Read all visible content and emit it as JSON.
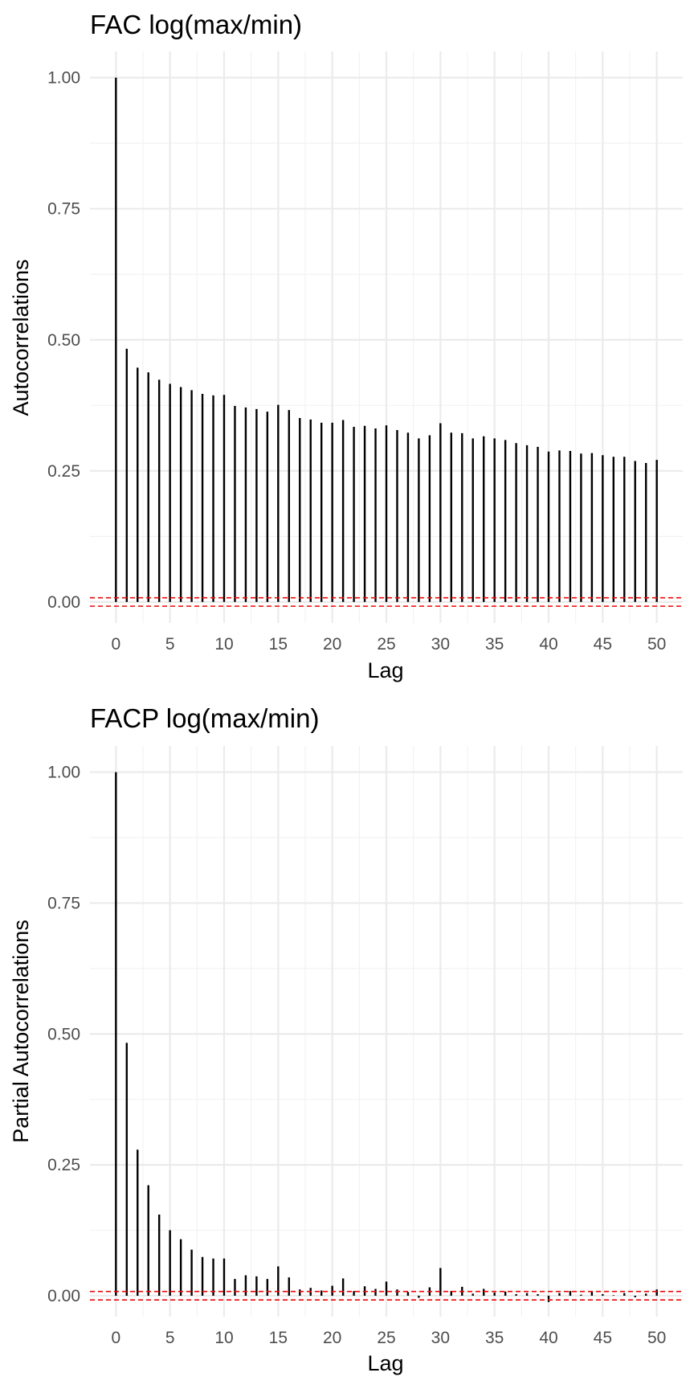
{
  "chart_data": [
    {
      "type": "bar",
      "title": "FAC log(max/min)",
      "xlabel": "Lag",
      "ylabel": "Autocorrelations",
      "xlim": [
        -2.4,
        52.4
      ],
      "ylim": [
        -0.04,
        1.05
      ],
      "xticks": [
        "0",
        "5",
        "10",
        "15",
        "20",
        "25",
        "30",
        "35",
        "40",
        "45",
        "50"
      ],
      "yticks": [
        "0.00",
        "0.25",
        "0.50",
        "0.75",
        "1.00"
      ],
      "grid": true,
      "confidence_band": [
        -0.008,
        0.008
      ],
      "confidence_color": "#ff0000",
      "bar_color": "#000000",
      "x": [
        0,
        1,
        2,
        3,
        4,
        5,
        6,
        7,
        8,
        9,
        10,
        11,
        12,
        13,
        14,
        15,
        16,
        17,
        18,
        19,
        20,
        21,
        22,
        23,
        24,
        25,
        26,
        27,
        28,
        29,
        30,
        31,
        32,
        33,
        34,
        35,
        36,
        37,
        38,
        39,
        40,
        41,
        42,
        43,
        44,
        45,
        46,
        47,
        48,
        49,
        50
      ],
      "values": [
        1.0,
        0.483,
        0.447,
        0.438,
        0.424,
        0.416,
        0.41,
        0.404,
        0.397,
        0.394,
        0.395,
        0.374,
        0.371,
        0.368,
        0.363,
        0.376,
        0.366,
        0.351,
        0.348,
        0.342,
        0.342,
        0.347,
        0.334,
        0.336,
        0.331,
        0.337,
        0.328,
        0.323,
        0.312,
        0.318,
        0.341,
        0.323,
        0.322,
        0.312,
        0.316,
        0.312,
        0.309,
        0.303,
        0.299,
        0.296,
        0.287,
        0.289,
        0.288,
        0.283,
        0.284,
        0.28,
        0.277,
        0.277,
        0.269,
        0.265,
        0.271
      ]
    },
    {
      "type": "bar",
      "title": "FACP log(max/min)",
      "xlabel": "Lag",
      "ylabel": "Partial Autocorrelations",
      "xlim": [
        -2.4,
        52.4
      ],
      "ylim": [
        -0.04,
        1.05
      ],
      "xticks": [
        "0",
        "5",
        "10",
        "15",
        "20",
        "25",
        "30",
        "35",
        "40",
        "45",
        "50"
      ],
      "yticks": [
        "0.00",
        "0.25",
        "0.50",
        "0.75",
        "1.00"
      ],
      "grid": true,
      "confidence_band": [
        -0.008,
        0.008
      ],
      "confidence_color": "#ff0000",
      "bar_color": "#000000",
      "x": [
        0,
        1,
        2,
        3,
        4,
        5,
        6,
        7,
        8,
        9,
        10,
        11,
        12,
        13,
        14,
        15,
        16,
        17,
        18,
        19,
        20,
        21,
        22,
        23,
        24,
        25,
        26,
        27,
        28,
        29,
        30,
        31,
        32,
        33,
        34,
        35,
        36,
        37,
        38,
        39,
        40,
        41,
        42,
        43,
        44,
        45,
        46,
        47,
        48,
        49,
        50
      ],
      "values": [
        1.0,
        0.483,
        0.279,
        0.211,
        0.155,
        0.125,
        0.108,
        0.088,
        0.074,
        0.071,
        0.071,
        0.032,
        0.039,
        0.037,
        0.032,
        0.056,
        0.035,
        0.012,
        0.015,
        0.01,
        0.019,
        0.033,
        0.009,
        0.018,
        0.013,
        0.027,
        0.012,
        0.007,
        -0.004,
        0.016,
        0.053,
        0.009,
        0.017,
        0.004,
        0.013,
        0.006,
        0.008,
        0.003,
        0.005,
        0.003,
        -0.012,
        0.005,
        0.009,
        0.002,
        0.008,
        0.003,
        0.001,
        0.005,
        -0.003,
        0.004,
        0.012
      ]
    }
  ]
}
